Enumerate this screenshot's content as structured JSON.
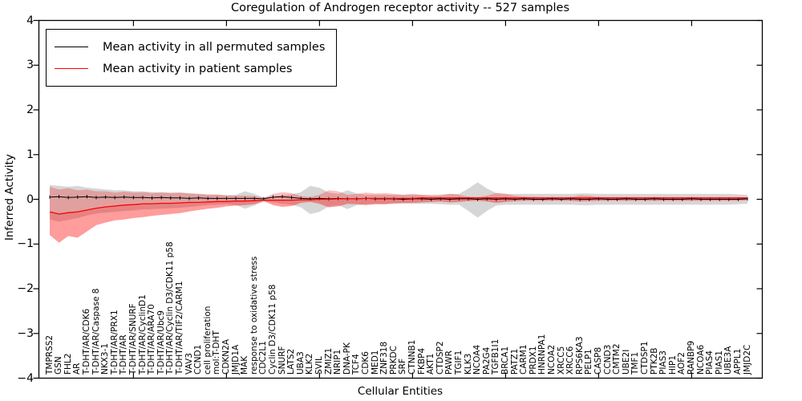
{
  "title": "Coregulation of Androgen receptor activity -- 527 samples",
  "axes": {
    "xlabel": "Cellular Entities",
    "ylabel": "Inferred Activity",
    "yticks": [
      "4",
      "3",
      "2",
      "1",
      "0",
      "−1",
      "−2",
      "−3",
      "−4"
    ],
    "ytick_values": [
      4,
      3,
      2,
      1,
      0,
      -1,
      -2,
      -3,
      -4
    ]
  },
  "legend": {
    "items": [
      {
        "label": "Mean activity in all permuted samples",
        "color": "#000000"
      },
      {
        "label": "Mean activity in patient samples",
        "color": "#ff0000"
      }
    ]
  },
  "colors": {
    "permuted_line": "#000000",
    "patient_line": "#ff0000",
    "permuted_band_fill": "#000000",
    "permuted_band_opacity": 0.16,
    "patient_band_fill": "#ff0000",
    "patient_band_opacity": 0.25,
    "patient_band_core_opacity": 0.18,
    "spine": "#000000"
  },
  "chart_data": {
    "type": "line",
    "title": "Coregulation of Androgen receptor activity -- 527 samples",
    "xlabel": "Cellular Entities",
    "ylabel": "Inferred Activity",
    "ylim": [
      -4,
      4
    ],
    "grid": false,
    "legend_position": "upper left",
    "top_tick_indices": [
      9,
      19,
      29,
      39,
      49,
      59,
      69
    ],
    "categories": [
      "TMPRSS2",
      "GSN",
      "FHL2",
      "AR",
      "T-DHT/AR/CDK6",
      "T-DHT/AR/Caspase 8",
      "NKX3-1",
      "T-DHT/AR/PRX1",
      "T-DHT/AR",
      "T-DHT/AR/SNURF",
      "T-DHT/AR/CyclinD1",
      "T-DHT/AR/ARA70",
      "T-DHT/AR/Ubc9",
      "T-DHT/AR/Cyclin D3/CDK11 p58",
      "T-DHT/AR/TIF2/CARM1",
      "VAV3",
      "CCND1",
      "cell proliferation",
      "mol:T-DHT",
      "CDKN2A",
      "JMJD1A",
      "MAK",
      "response to oxidative stress",
      "CDC2L1",
      "Cyclin D3/CDK11 p58",
      "SNURF",
      "LATS2",
      "UBA3",
      "KLK2",
      "SVIL",
      "ZMIZ1",
      "NRIP1",
      "DNA-PK",
      "TCF4",
      "CDK6",
      "MED1",
      "ZNF318",
      "PRKDC",
      "SRF",
      "CTNNB1",
      "FKBP4",
      "AKT1",
      "CTDSP2",
      "PAWR",
      "TGIF1",
      "KLK3",
      "NCOA4",
      "PA2G4",
      "TGFB1I1",
      "BRCA1",
      "PATZ1",
      "CARM1",
      "PRDX1",
      "HNRNPA1",
      "NCOA2",
      "XRCC5",
      "XRCC6",
      "RPS6KA3",
      "PELP1",
      "CASP8",
      "CCND3",
      "CMTM2",
      "UBE2I",
      "TMF1",
      "CTDSP1",
      "PTK2B",
      "PIAS3",
      "HIP1",
      "AOF2",
      "RANBP9",
      "NCOA6",
      "PIAS4",
      "PIAS1",
      "UBE3A",
      "APPL1",
      "JMJD2C"
    ],
    "series": [
      {
        "name": "Mean activity in all permuted samples",
        "color": "#000000",
        "values": [
          0.05,
          0.06,
          0.04,
          0.05,
          0.06,
          0.04,
          0.05,
          0.04,
          0.05,
          0.04,
          0.04,
          0.03,
          0.04,
          0.03,
          0.03,
          0.02,
          0.03,
          0.02,
          0.02,
          0.02,
          0.02,
          0.02,
          0.02,
          0.01,
          0.05,
          0.06,
          0.04,
          0.02,
          0.01,
          0.02,
          0.01,
          0.02,
          0.01,
          0.01,
          0.02,
          0.01,
          0.01,
          0.01,
          0.0,
          0.01,
          0.01,
          0.0,
          0.01,
          0.0,
          0.01,
          0.01,
          0.0,
          0.01,
          0.0,
          0.01,
          0.0,
          0.01,
          0.0,
          0.0,
          0.01,
          0.0,
          0.01,
          0.0,
          0.0,
          0.01,
          0.0,
          0.0,
          0.01,
          0.0,
          0.0,
          0.01,
          0.0,
          0.0,
          0.0,
          0.01,
          0.0,
          0.0,
          0.0,
          0.0,
          0.0,
          0.01
        ]
      },
      {
        "name": "Mean activity in patient samples",
        "color": "#ff0000",
        "values": [
          -0.28,
          -0.33,
          -0.3,
          -0.28,
          -0.24,
          -0.2,
          -0.17,
          -0.15,
          -0.13,
          -0.12,
          -0.1,
          -0.1,
          -0.09,
          -0.09,
          -0.08,
          -0.07,
          -0.07,
          -0.06,
          -0.05,
          -0.05,
          -0.04,
          -0.04,
          -0.03,
          -0.02,
          -0.02,
          -0.02,
          -0.02,
          -0.01,
          -0.01,
          0.0,
          0.0,
          0.01,
          0.01,
          0.01,
          0.02,
          0.02,
          0.02,
          0.02,
          0.02,
          0.02,
          0.03,
          0.03,
          0.03,
          0.03,
          0.03,
          0.03,
          0.03,
          0.03,
          0.03,
          0.03,
          0.03,
          0.03,
          0.03,
          0.03,
          0.03,
          0.03,
          0.03,
          0.03,
          0.03,
          0.03,
          0.03,
          0.03,
          0.03,
          0.03,
          0.03,
          0.03,
          0.03,
          0.03,
          0.03,
          0.03,
          0.03,
          0.03,
          0.03,
          0.03,
          0.03,
          0.03
        ]
      }
    ],
    "bands": [
      {
        "name": "permuted samples spread",
        "upper": [
          0.32,
          0.3,
          0.28,
          0.3,
          0.26,
          0.24,
          0.22,
          0.2,
          0.2,
          0.18,
          0.18,
          0.16,
          0.16,
          0.15,
          0.15,
          0.14,
          0.12,
          0.11,
          0.1,
          0.09,
          0.1,
          0.18,
          0.12,
          0.04,
          0.06,
          0.09,
          0.11,
          0.16,
          0.3,
          0.26,
          0.15,
          0.12,
          0.2,
          0.13,
          0.1,
          0.1,
          0.1,
          0.1,
          0.1,
          0.1,
          0.1,
          0.1,
          0.11,
          0.12,
          0.12,
          0.24,
          0.38,
          0.24,
          0.14,
          0.12,
          0.12,
          0.12,
          0.12,
          0.12,
          0.12,
          0.12,
          0.12,
          0.13,
          0.13,
          0.12,
          0.12,
          0.12,
          0.12,
          0.12,
          0.12,
          0.12,
          0.12,
          0.12,
          0.12,
          0.12,
          0.12,
          0.12,
          0.12,
          0.12,
          0.11,
          0.1
        ],
        "lower": [
          -0.45,
          -0.5,
          -0.46,
          -0.42,
          -0.36,
          -0.32,
          -0.3,
          -0.28,
          -0.26,
          -0.25,
          -0.23,
          -0.22,
          -0.21,
          -0.2,
          -0.19,
          -0.17,
          -0.15,
          -0.13,
          -0.12,
          -0.11,
          -0.13,
          -0.21,
          -0.14,
          -0.05,
          -0.07,
          -0.1,
          -0.12,
          -0.18,
          -0.33,
          -0.28,
          -0.16,
          -0.13,
          -0.22,
          -0.13,
          -0.11,
          -0.1,
          -0.11,
          -0.1,
          -0.1,
          -0.1,
          -0.1,
          -0.1,
          -0.11,
          -0.12,
          -0.12,
          -0.26,
          -0.41,
          -0.26,
          -0.14,
          -0.12,
          -0.12,
          -0.12,
          -0.12,
          -0.12,
          -0.12,
          -0.12,
          -0.12,
          -0.13,
          -0.13,
          -0.12,
          -0.12,
          -0.12,
          -0.12,
          -0.12,
          -0.12,
          -0.12,
          -0.12,
          -0.12,
          -0.12,
          -0.12,
          -0.12,
          -0.12,
          -0.12,
          -0.12,
          -0.11,
          -0.1
        ]
      },
      {
        "name": "patient samples spread",
        "upper": [
          0.28,
          0.22,
          0.25,
          0.2,
          0.22,
          0.18,
          0.18,
          0.15,
          0.17,
          0.15,
          0.16,
          0.14,
          0.15,
          0.14,
          0.15,
          0.13,
          0.12,
          0.1,
          0.11,
          0.09,
          0.08,
          0.08,
          0.07,
          0.03,
          0.12,
          0.16,
          0.14,
          0.07,
          0.05,
          0.1,
          0.2,
          0.18,
          0.1,
          0.12,
          0.15,
          0.13,
          0.14,
          0.12,
          0.1,
          0.12,
          0.1,
          0.08,
          0.08,
          0.12,
          0.1,
          0.06,
          0.05,
          0.08,
          0.14,
          0.12,
          0.08,
          0.06,
          0.06,
          0.05,
          0.05,
          0.05,
          0.05,
          0.09,
          0.08,
          0.05,
          0.05,
          0.05,
          0.05,
          0.05,
          0.05,
          0.05,
          0.05,
          0.05,
          0.05,
          0.05,
          0.05,
          0.05,
          0.05,
          0.05,
          0.05,
          0.04
        ],
        "lower": [
          -0.8,
          -0.97,
          -0.82,
          -0.86,
          -0.72,
          -0.58,
          -0.52,
          -0.47,
          -0.45,
          -0.42,
          -0.4,
          -0.37,
          -0.35,
          -0.33,
          -0.31,
          -0.27,
          -0.24,
          -0.21,
          -0.19,
          -0.16,
          -0.14,
          -0.13,
          -0.11,
          -0.04,
          -0.13,
          -0.17,
          -0.15,
          -0.08,
          -0.06,
          -0.1,
          -0.18,
          -0.16,
          -0.1,
          -0.11,
          -0.13,
          -0.11,
          -0.11,
          -0.09,
          -0.08,
          -0.08,
          -0.07,
          -0.06,
          -0.05,
          -0.07,
          -0.06,
          -0.04,
          -0.03,
          -0.05,
          -0.08,
          -0.06,
          -0.04,
          -0.03,
          -0.03,
          -0.03,
          -0.03,
          -0.03,
          -0.03,
          -0.05,
          -0.04,
          -0.03,
          -0.03,
          -0.03,
          -0.03,
          -0.03,
          -0.03,
          -0.03,
          -0.03,
          -0.03,
          -0.03,
          -0.03,
          -0.03,
          -0.03,
          -0.03,
          -0.03,
          -0.03,
          -0.02
        ]
      }
    ]
  }
}
